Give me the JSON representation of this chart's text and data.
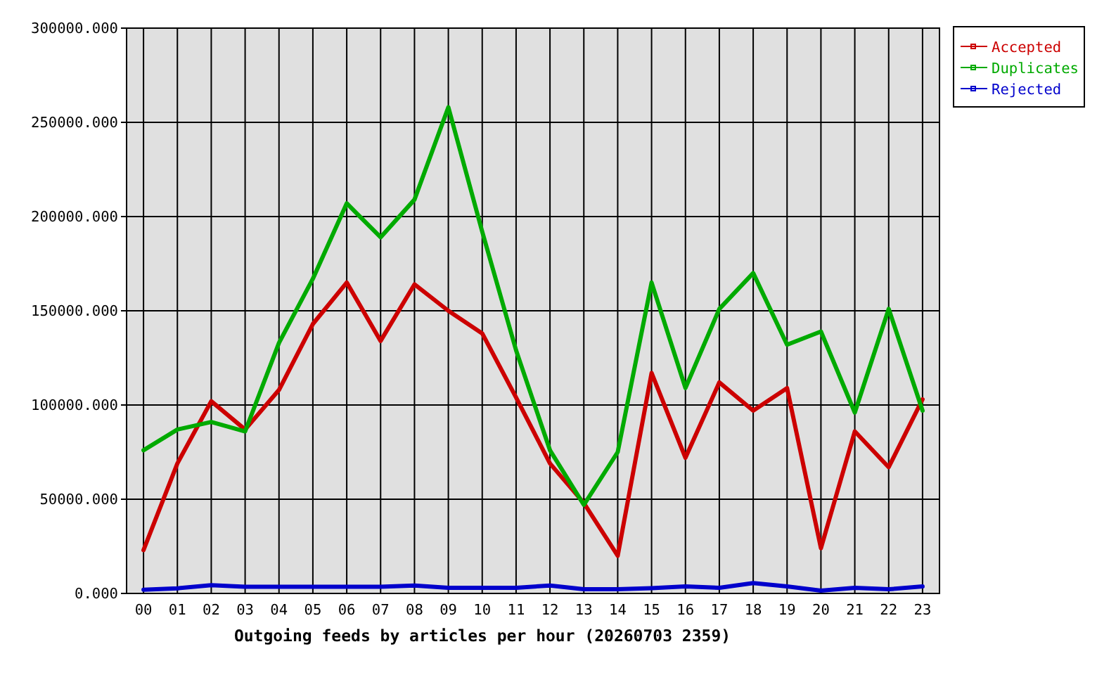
{
  "chart_data": {
    "type": "line",
    "xlabel": "Outgoing feeds by articles per hour (20260703 2359)",
    "categories": [
      "00",
      "01",
      "02",
      "03",
      "04",
      "05",
      "06",
      "07",
      "08",
      "09",
      "10",
      "11",
      "12",
      "13",
      "14",
      "15",
      "16",
      "17",
      "18",
      "19",
      "20",
      "21",
      "22",
      "23"
    ],
    "series": [
      {
        "name": "Accepted",
        "color": "#cc0000",
        "values": [
          23000,
          69000,
          102000,
          87000,
          108000,
          143000,
          165000,
          134000,
          164000,
          150000,
          138000,
          104000,
          69000,
          48000,
          20000,
          117000,
          72000,
          112000,
          97000,
          109000,
          24000,
          86000,
          67000,
          103000
        ]
      },
      {
        "name": "Duplicates",
        "color": "#00aa00",
        "values": [
          76000,
          87000,
          91000,
          86000,
          133000,
          167000,
          207000,
          189000,
          209000,
          258000,
          192000,
          129000,
          76000,
          47000,
          75000,
          165000,
          109000,
          151000,
          170000,
          132000,
          139000,
          96000,
          151000,
          97000
        ]
      },
      {
        "name": "Rejected",
        "color": "#0000cc",
        "values": [
          2000,
          2700,
          4400,
          3500,
          3500,
          3500,
          3500,
          3500,
          4200,
          3000,
          3000,
          3000,
          4200,
          2200,
          2200,
          2800,
          3700,
          3000,
          5500,
          3700,
          1500,
          3000,
          2200,
          3700
        ]
      }
    ],
    "ylim": [
      0,
      300000
    ],
    "yticks": [
      {
        "value": 0,
        "label": "0.000"
      },
      {
        "value": 50000,
        "label": "50000.000"
      },
      {
        "value": 100000,
        "label": "100000.000"
      },
      {
        "value": 150000,
        "label": "150000.000"
      },
      {
        "value": 200000,
        "label": "200000.000"
      },
      {
        "value": 250000,
        "label": "250000.000"
      },
      {
        "value": 300000,
        "label": "300000.000"
      }
    ],
    "grid": true,
    "legend": "top right",
    "line_style": "solid"
  }
}
